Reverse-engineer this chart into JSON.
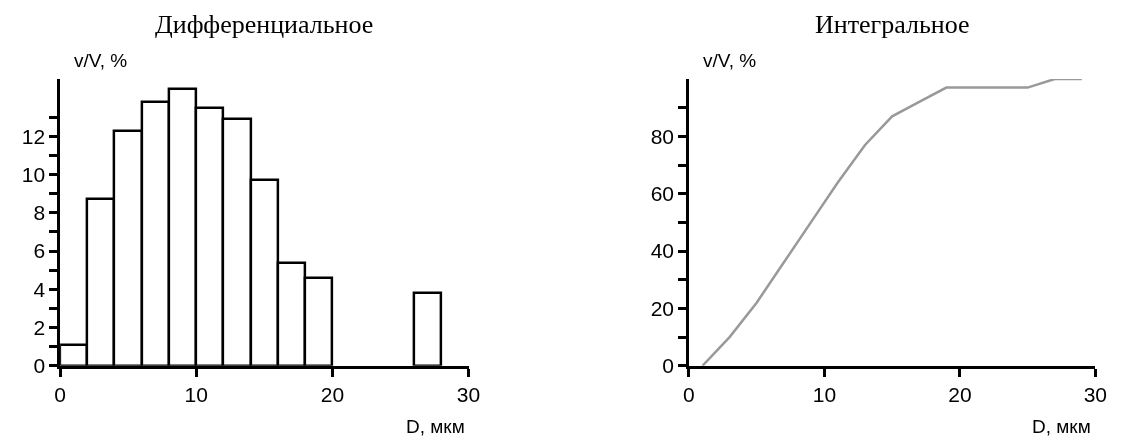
{
  "chart_data": [
    {
      "type": "histogram",
      "title": "Дифференциальное",
      "xlabel": "D, мкм",
      "ylabel": "v/V, %",
      "color": "#ffffff",
      "bins": [
        0,
        2,
        4,
        6,
        8,
        10,
        12,
        14,
        16,
        18,
        20,
        22,
        24,
        26,
        28,
        30
      ],
      "values": [
        1.1,
        8.7,
        12.3,
        13.8,
        14.5,
        13.5,
        12.9,
        9.7,
        5.4,
        4.6,
        0,
        0,
        0,
        3.8,
        0
      ],
      "xlim": [
        0,
        30
      ],
      "xticks": [
        0,
        10,
        20,
        30
      ],
      "ylim": [
        0,
        15
      ],
      "yticks": [
        0,
        {
          "value": 1,
          "label": null
        },
        2,
        {
          "value": 3,
          "label": null
        },
        4,
        {
          "value": 5,
          "label": null
        },
        6,
        {
          "value": 7,
          "label": null
        },
        8,
        {
          "value": 9,
          "label": null
        },
        10,
        {
          "value": 11,
          "label": null
        },
        12,
        {
          "value": 13,
          "label": null
        }
      ]
    },
    {
      "type": "line",
      "title": "Интегральное",
      "xlabel": "D, мкм",
      "ylabel": "v/V, %",
      "x": [
        1,
        3,
        5,
        7,
        9,
        11,
        13,
        15,
        17,
        19,
        25,
        27,
        29
      ],
      "series": [
        {
          "color": "#999999",
          "values": [
            0,
            10,
            22,
            36,
            50,
            64,
            77,
            87,
            92,
            97,
            97,
            100,
            100
          ]
        }
      ],
      "xlim": [
        0,
        30
      ],
      "xticks": [
        0,
        10,
        20,
        30
      ],
      "ylim": [
        0,
        100
      ],
      "yticks": [
        0,
        {
          "value": 10,
          "label": null
        },
        20,
        {
          "value": 30,
          "label": null
        },
        40,
        {
          "value": 50,
          "label": null
        },
        60,
        {
          "value": 70,
          "label": null
        },
        80,
        {
          "value": 90,
          "label": null
        }
      ]
    }
  ]
}
